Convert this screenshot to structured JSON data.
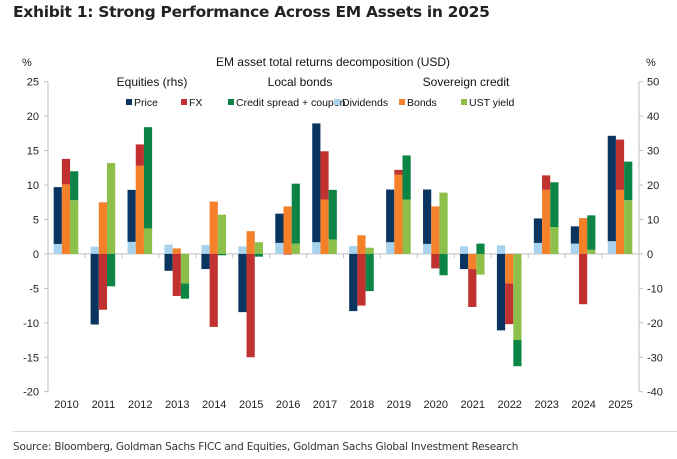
{
  "header": {
    "title": "Exhibit 1: Strong Performance Across EM Assets in 2025"
  },
  "footer": {
    "source": "Source: Bloomberg, Goldman Sachs FICC and Equities, Goldman Sachs Global Investment Research"
  },
  "chart_data": {
    "type": "bar",
    "stacked": true,
    "title": "EM asset total returns decomposition (USD)",
    "ylabel_left": "%",
    "ylabel_right": "%",
    "ylim_left": [
      -20,
      25
    ],
    "ylim_right": [
      -40,
      50
    ],
    "yticks_left": [
      25,
      20,
      15,
      10,
      5,
      0,
      -5,
      -10,
      -15,
      -20
    ],
    "yticks_right": [
      50,
      40,
      30,
      20,
      10,
      0,
      -10,
      -20,
      -30,
      -40
    ],
    "grid": false,
    "legend_position": "top",
    "group_labels": [
      "Equities (rhs)",
      "Local bonds",
      "Sovereign credit"
    ],
    "categories": [
      "2010",
      "2011",
      "2012",
      "2013",
      "2014",
      "2015",
      "2016",
      "2017",
      "2018",
      "2019",
      "2020",
      "2021",
      "2022",
      "2023",
      "2024",
      "2025"
    ],
    "legend": [
      {
        "name": "Price",
        "color": "#0b3561"
      },
      {
        "name": "FX",
        "color": "#c0312f"
      },
      {
        "name": "Credit spread + coupon",
        "color": "#0b8445"
      },
      {
        "name": "Dividends",
        "color": "#a9d2ee"
      },
      {
        "name": "Bonds",
        "color": "#f5802a"
      },
      {
        "name": "UST yield",
        "color": "#8cc04b"
      }
    ],
    "stacks": [
      {
        "name": "Equities (rhs)",
        "axis": "right",
        "series": [
          {
            "name": "Dividends",
            "color": "#a9d2ee",
            "values": [
              2.9,
              2.1,
              3.5,
              2.7,
              2.6,
              2.2,
              3.2,
              3.4,
              2.3,
              3.4,
              2.9,
              2.2,
              2.5,
              3.2,
              3.0,
              3.7
            ]
          },
          {
            "name": "Price",
            "color": "#0b3561",
            "values": [
              16.5,
              -20.5,
              15.1,
              -4.9,
              -4.4,
              -16.9,
              8.5,
              34.5,
              -16.6,
              15.3,
              15.8,
              -4.4,
              -22.2,
              7.1,
              5.0,
              30.6
            ]
          }
        ]
      },
      {
        "name": "Local bonds",
        "axis": "left",
        "series": [
          {
            "name": "Bonds",
            "color": "#f5802a",
            "values": [
              10.1,
              7.5,
              12.8,
              0.8,
              7.6,
              3.3,
              6.9,
              7.9,
              2.7,
              11.5,
              6.9,
              -2.2,
              -4.3,
              9.3,
              5.2,
              9.3
            ]
          },
          {
            "name": "FX",
            "color": "#c0312f",
            "values": [
              3.7,
              -8.1,
              3.1,
              -6.1,
              -10.6,
              -15.0,
              -0.1,
              7.0,
              -7.5,
              0.7,
              -2.1,
              -5.5,
              -5.9,
              2.1,
              -7.3,
              7.3
            ]
          }
        ]
      },
      {
        "name": "Sovereign credit",
        "axis": "left",
        "series": [
          {
            "name": "UST yield",
            "color": "#8cc04b",
            "values": [
              7.8,
              13.2,
              3.7,
              -4.3,
              5.7,
              1.7,
              1.5,
              2.1,
              0.9,
              7.9,
              8.9,
              -3.0,
              -12.5,
              3.9,
              0.6,
              7.8
            ]
          },
          {
            "name": "Credit spread + coupon",
            "color": "#0b8445",
            "values": [
              4.2,
              -4.7,
              14.7,
              -2.2,
              -0.2,
              -0.4,
              8.7,
              7.2,
              -5.4,
              6.4,
              -3.1,
              1.5,
              -3.8,
              6.5,
              5.0,
              5.6
            ]
          }
        ]
      }
    ]
  }
}
